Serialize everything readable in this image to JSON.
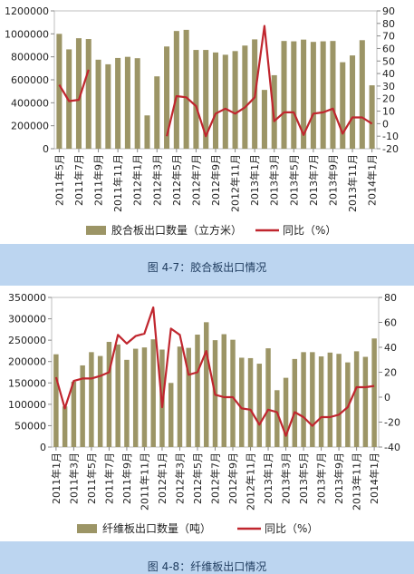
{
  "figure1": {
    "caption": "图 4-7：胶合板出口情况",
    "chart_data": {
      "type": "bar",
      "categories": [
        "2011年5月",
        "2011年6月",
        "2011年7月",
        "2011年8月",
        "2011年9月",
        "2011年10月",
        "2011年11月",
        "2011年12月",
        "2012年1月",
        "2012年2月",
        "2012年3月",
        "2012年4月",
        "2012年5月",
        "2012年6月",
        "2012年7月",
        "2012年8月",
        "2012年9月",
        "2012年10月",
        "2012年11月",
        "2012年12月",
        "2013年1月",
        "2013年2月",
        "2013年3月",
        "2013年4月",
        "2013年5月",
        "2013年6月",
        "2013年7月",
        "2013年8月",
        "2013年9月",
        "2013年10月",
        "2013年11月",
        "2013年12月",
        "2014年1月"
      ],
      "xtick_labels": [
        "2011年5月",
        "2011年7月",
        "2011年9月",
        "2011年11月",
        "2012年1月",
        "2012年3月",
        "2012年5月",
        "2012年7月",
        "2012年9月",
        "2012年11月",
        "2013年1月",
        "2013年3月",
        "2013年5月",
        "2013年7月",
        "2013年9月",
        "2013年11月",
        "2014年1月"
      ],
      "series": [
        {
          "name": "胶合板出口数量（立方米）",
          "type": "bar",
          "axis": "left",
          "color": "#9c9566",
          "values": [
            1000000,
            865000,
            962000,
            955000,
            775000,
            735000,
            790000,
            800000,
            788000,
            290000,
            630000,
            890000,
            1025000,
            1035000,
            860000,
            860000,
            838000,
            818000,
            850000,
            898000,
            952000,
            512000,
            640000,
            938000,
            935000,
            950000,
            930000,
            935000,
            938000,
            753000,
            812000,
            945000,
            552000
          ]
        },
        {
          "name": "同比（%）",
          "type": "line",
          "axis": "right",
          "color": "#c0262e",
          "values": [
            31,
            18,
            19,
            43,
            null,
            null,
            null,
            null,
            null,
            null,
            null,
            -10,
            22,
            21,
            14,
            -10,
            8,
            12,
            8,
            13,
            21,
            78,
            2,
            9,
            9,
            -9,
            8,
            9,
            12,
            -8,
            5,
            5,
            0
          ]
        }
      ],
      "left_axis": {
        "ylim": [
          0,
          1200000
        ],
        "ticks": [
          "0",
          "200000",
          "400000",
          "600000",
          "800000",
          "1000000",
          "1200000"
        ]
      },
      "right_axis": {
        "ylim": [
          -20,
          90
        ],
        "ticks": [
          "-20",
          "-10",
          "0",
          "10",
          "20",
          "30",
          "40",
          "50",
          "60",
          "70",
          "80",
          "90"
        ]
      },
      "legend_position": "bottom"
    }
  },
  "figure2": {
    "caption": "图 4-8：纤维板出口情况",
    "chart_data": {
      "type": "bar",
      "categories": [
        "2011年1月",
        "2011年2月",
        "2011年3月",
        "2011年4月",
        "2011年5月",
        "2011年6月",
        "2011年7月",
        "2011年8月",
        "2011年9月",
        "2011年10月",
        "2011年11月",
        "2011年12月",
        "2012年1月",
        "2012年2月",
        "2012年3月",
        "2012年4月",
        "2012年5月",
        "2012年6月",
        "2012年7月",
        "2012年8月",
        "2012年9月",
        "2012年10月",
        "2012年11月",
        "2012年12月",
        "2013年1月",
        "2013年2月",
        "2013年3月",
        "2013年4月",
        "2013年5月",
        "2013年6月",
        "2013年7月",
        "2013年8月",
        "2013年9月",
        "2013年10月",
        "2013年11月",
        "2013年12月",
        "2014年1月"
      ],
      "xtick_labels": [
        "2011年1月",
        "2011年3月",
        "2011年5月",
        "2011年7月",
        "2011年9月",
        "2011年11月",
        "2012年1月",
        "2012年3月",
        "2012年5月",
        "2012年7月",
        "2012年9月",
        "2012年11月",
        "2013年1月",
        "2013年3月",
        "2013年5月",
        "2013年7月",
        "2013年9月",
        "2013年11月",
        "2014年1月"
      ],
      "series": [
        {
          "name": "纤维板出口数量（吨）",
          "type": "bar",
          "axis": "left",
          "color": "#9c9566",
          "values": [
            217000,
            95000,
            153000,
            191000,
            222000,
            213000,
            246000,
            240000,
            204000,
            230000,
            233000,
            252000,
            228000,
            150000,
            235000,
            232000,
            263000,
            292000,
            250000,
            264000,
            251000,
            209000,
            208000,
            195000,
            231000,
            133000,
            162000,
            206000,
            222000,
            222000,
            212000,
            221000,
            218000,
            198000,
            224000,
            211000,
            254000
          ]
        },
        {
          "name": "同比（%）",
          "type": "line",
          "axis": "right",
          "color": "#c0262e",
          "values": [
            16,
            -9,
            13,
            15,
            15,
            17,
            20,
            50,
            43,
            49,
            51,
            72,
            -8,
            55,
            50,
            18,
            20,
            37,
            2,
            0,
            0,
            -9,
            -10,
            -22,
            -10,
            -12,
            -31,
            -12,
            -16,
            -23,
            -16,
            -16,
            -14,
            -8,
            8,
            8,
            9
          ]
        }
      ],
      "left_axis": {
        "ylim": [
          0,
          350000
        ],
        "ticks": [
          "0",
          "50000",
          "100000",
          "150000",
          "200000",
          "250000",
          "300000",
          "350000"
        ]
      },
      "right_axis": {
        "ylim": [
          -40,
          80
        ],
        "ticks": [
          "-40",
          "-20",
          "0",
          "20",
          "40",
          "60",
          "80"
        ]
      },
      "legend_position": "bottom"
    }
  }
}
